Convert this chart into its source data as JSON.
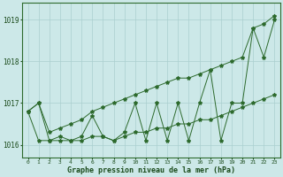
{
  "x": [
    0,
    1,
    2,
    3,
    4,
    5,
    6,
    7,
    8,
    9,
    10,
    11,
    12,
    13,
    14,
    15,
    16,
    17,
    18,
    19,
    20,
    21,
    22,
    23
  ],
  "y_zigzag": [
    1016.8,
    1017.0,
    1016.1,
    1016.2,
    1016.1,
    1016.2,
    1016.7,
    1016.2,
    1016.1,
    1016.3,
    1017.0,
    1016.1,
    1017.0,
    1016.1,
    1017.0,
    1016.1,
    1017.0,
    1017.8,
    1016.1,
    1017.0,
    1017.0,
    1018.8,
    1018.1,
    1019.0
  ],
  "y_trend_low": [
    1016.8,
    1016.1,
    1016.1,
    1016.1,
    1016.1,
    1016.1,
    1016.2,
    1016.2,
    1016.1,
    1016.2,
    1016.3,
    1016.3,
    1016.4,
    1016.4,
    1016.5,
    1016.5,
    1016.6,
    1016.6,
    1016.7,
    1016.8,
    1016.9,
    1017.0,
    1017.1,
    1017.2
  ],
  "y_trend_high": [
    1016.8,
    1017.0,
    1016.3,
    1016.4,
    1016.5,
    1016.6,
    1016.8,
    1016.9,
    1017.0,
    1017.1,
    1017.2,
    1017.3,
    1017.4,
    1017.5,
    1017.6,
    1017.6,
    1017.7,
    1017.8,
    1017.9,
    1018.0,
    1018.1,
    1018.8,
    1018.9,
    1019.1
  ],
  "ylim": [
    1015.7,
    1019.4
  ],
  "yticks": [
    1016,
    1017,
    1018,
    1019
  ],
  "xlabel": "Graphe pression niveau de la mer (hPa)",
  "line_color": "#2d6a2d",
  "bg_color": "#cce8e8",
  "grid_color": "#aacfcf",
  "label_color": "#1a4a1a",
  "spine_color": "#2d6a2d"
}
